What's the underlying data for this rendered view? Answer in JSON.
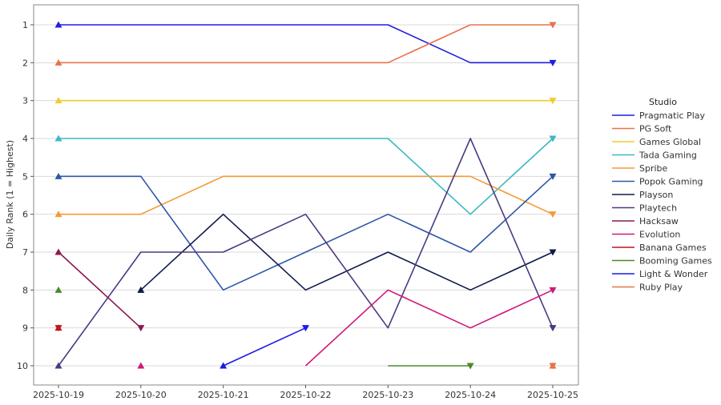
{
  "chart_data": {
    "type": "line",
    "ylabel": "Daily Rank (1 = Highest)",
    "xlabel": "",
    "dates": [
      "2025-10-19",
      "2025-10-20",
      "2025-10-21",
      "2025-10-22",
      "2025-10-23",
      "2025-10-24",
      "2025-10-25"
    ],
    "y_ticks": [
      1,
      2,
      3,
      4,
      5,
      6,
      7,
      8,
      9,
      10
    ],
    "ylim": [
      10.5,
      0.5
    ],
    "y_inverted": true,
    "grid": "horizontal",
    "legend": {
      "title": "Studio",
      "position": "right"
    },
    "series": [
      {
        "name": "Pragmatic Play",
        "color": "#1f1fe0",
        "values": [
          1,
          1,
          1,
          1,
          1,
          2,
          2
        ]
      },
      {
        "name": "PG Soft",
        "color": "#e8734a",
        "values": [
          2,
          2,
          2,
          2,
          2,
          1,
          1
        ]
      },
      {
        "name": "Games Global",
        "color": "#f2cc2a",
        "values": [
          3,
          3,
          3,
          3,
          3,
          3,
          3
        ]
      },
      {
        "name": "Tada Gaming",
        "color": "#3cb8c3",
        "values": [
          4,
          4,
          4,
          4,
          4,
          6,
          4
        ]
      },
      {
        "name": "Spribe",
        "color": "#f59a35",
        "values": [
          6,
          6,
          5,
          5,
          5,
          5,
          6
        ]
      },
      {
        "name": "Popok Gaming",
        "color": "#2e57a8",
        "values": [
          5,
          5,
          8,
          7,
          6,
          7,
          5
        ]
      },
      {
        "name": "Playson",
        "color": "#0f1a4a",
        "values": [
          null,
          8,
          6,
          8,
          7,
          8,
          7
        ]
      },
      {
        "name": "Playtech",
        "color": "#4b3a80",
        "values": [
          10,
          7,
          7,
          6,
          9,
          4,
          9
        ]
      },
      {
        "name": "Hacksaw",
        "color": "#8b1a4f",
        "values": [
          7,
          9,
          null,
          null,
          null,
          null,
          null
        ]
      },
      {
        "name": "Evolution",
        "color": "#d0187a",
        "values": [
          null,
          10,
          null,
          10,
          8,
          9,
          8
        ]
      },
      {
        "name": "Banana Games",
        "color": "#c0151f",
        "values": [
          9,
          null,
          null,
          null,
          null,
          null,
          null
        ]
      },
      {
        "name": "Booming Games",
        "color": "#4a8a2a",
        "values": [
          8,
          null,
          null,
          null,
          10,
          10,
          null
        ]
      },
      {
        "name": "Light & Wonder",
        "color": "#1a1ae6",
        "values": [
          null,
          null,
          10,
          9,
          null,
          null,
          null
        ]
      },
      {
        "name": "Ruby Play",
        "color": "#e8734a",
        "values": [
          null,
          null,
          null,
          null,
          null,
          null,
          10
        ]
      }
    ]
  }
}
